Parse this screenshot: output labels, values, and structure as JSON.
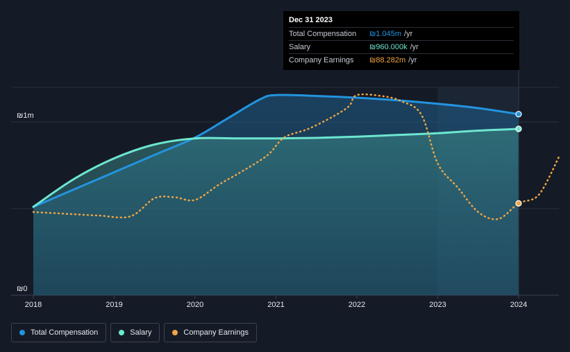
{
  "colors": {
    "total_compensation": "#2394df",
    "salary": "#6ee6d0",
    "company_earnings": "#f0a545",
    "background": "#151b26"
  },
  "tooltip": {
    "date": "Dec 31 2023",
    "rows": [
      {
        "label": "Total Compensation",
        "value": "₪1.045m",
        "unit": "/yr"
      },
      {
        "label": "Salary",
        "value": "₪960.000k",
        "unit": "/yr"
      },
      {
        "label": "Company Earnings",
        "value": "₪88.282m",
        "unit": "/yr"
      }
    ]
  },
  "legend": [
    {
      "label": "Total Compensation",
      "series": "total_compensation"
    },
    {
      "label": "Salary",
      "series": "salary"
    },
    {
      "label": "Company Earnings",
      "series": "company_earnings"
    }
  ],
  "chart_data": {
    "type": "line",
    "title": "",
    "xlabel": "",
    "ylabel": "",
    "y_tick_labels": [
      "₪0",
      "₪1m"
    ],
    "ylim": [
      0,
      1.2
    ],
    "xlim": [
      2018,
      2024.5
    ],
    "x_ticks": [
      "2018",
      "2019",
      "2020",
      "2021",
      "2022",
      "2023",
      "2024"
    ],
    "highlight_x": 2024,
    "shaded_range": [
      2023,
      2024
    ],
    "grid": "horizontal",
    "legend_position": "bottom-left",
    "series": [
      {
        "name": "Total Compensation",
        "key": "total_compensation",
        "style": "solid-area",
        "x": [
          2018,
          2018.5,
          2019,
          2019.5,
          2020,
          2020.4,
          2020.8,
          2021,
          2021.5,
          2022,
          2022.5,
          2023,
          2023.5,
          2024
        ],
        "y": [
          0.51,
          0.61,
          0.71,
          0.81,
          0.91,
          1.02,
          1.13,
          1.155,
          1.15,
          1.14,
          1.125,
          1.105,
          1.08,
          1.045
        ]
      },
      {
        "name": "Salary",
        "key": "salary",
        "style": "solid-area",
        "x": [
          2018,
          2018.5,
          2019,
          2019.5,
          2020,
          2020.5,
          2021,
          2021.5,
          2022,
          2022.5,
          2023,
          2023.5,
          2024
        ],
        "y": [
          0.51,
          0.67,
          0.79,
          0.87,
          0.905,
          0.905,
          0.905,
          0.908,
          0.915,
          0.925,
          0.935,
          0.95,
          0.96
        ]
      },
      {
        "name": "Company Earnings",
        "key": "company_earnings",
        "style": "dotted",
        "x": [
          2018,
          2018.4,
          2018.8,
          2019.2,
          2019.5,
          2019.75,
          2020,
          2020.3,
          2020.6,
          2020.9,
          2021.1,
          2021.4,
          2021.7,
          2021.9,
          2022,
          2022.3,
          2022.55,
          2022.8,
          2023,
          2023.25,
          2023.5,
          2023.75,
          2024,
          2024.25,
          2024.5
        ],
        "y": [
          0.48,
          0.47,
          0.46,
          0.455,
          0.56,
          0.565,
          0.55,
          0.64,
          0.72,
          0.81,
          0.91,
          0.96,
          1.03,
          1.09,
          1.155,
          1.15,
          1.12,
          1.04,
          0.76,
          0.62,
          0.48,
          0.44,
          0.53,
          0.58,
          0.8
        ]
      }
    ],
    "last_points": [
      {
        "series": "total_compensation",
        "x": 2024,
        "y": 1.045
      },
      {
        "series": "salary",
        "x": 2024,
        "y": 0.96
      },
      {
        "series": "company_earnings",
        "x": 2024,
        "y": 0.53
      }
    ]
  }
}
